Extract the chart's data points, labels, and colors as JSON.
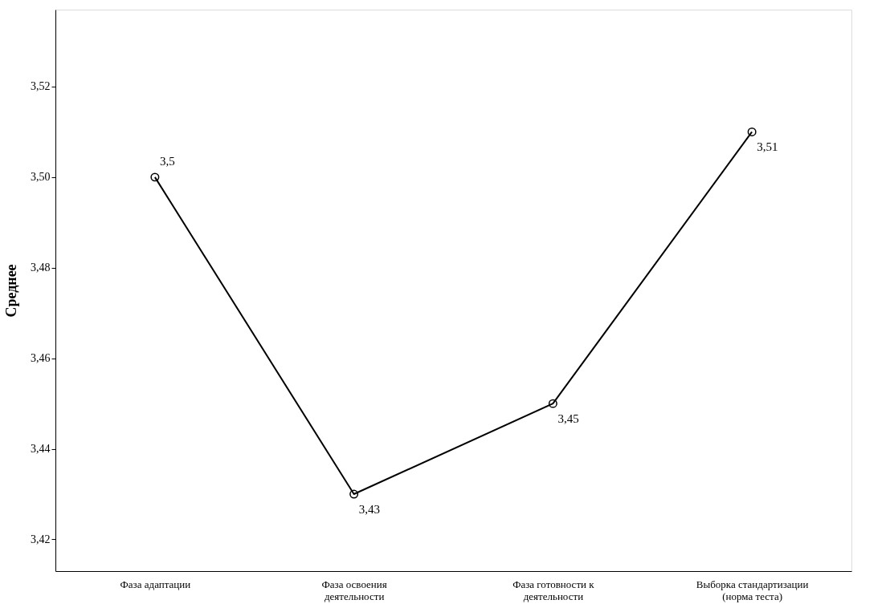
{
  "chart_data": {
    "type": "line",
    "ylabel": "Среднее",
    "categories": [
      "Фаза адаптации",
      "Фаза освоения деятельности",
      "Фаза готовности к деятельности",
      "Выборка стандартизации (норма теста)"
    ],
    "values": [
      3.5,
      3.43,
      3.45,
      3.51
    ],
    "value_labels": [
      "3,5",
      "3,43",
      "3,45",
      "3,51"
    ],
    "color": "#000000",
    "marker": "circle",
    "line_style": "solid",
    "ylim": [
      3.413,
      3.537
    ],
    "yticks": [
      {
        "value": 3.42,
        "label": "3,42"
      },
      {
        "value": 3.44,
        "label": "3,44"
      },
      {
        "value": 3.46,
        "label": "3,46"
      },
      {
        "value": 3.48,
        "label": "3,48"
      },
      {
        "value": 3.5,
        "label": "3,50"
      },
      {
        "value": 3.52,
        "label": "3,52"
      }
    ],
    "grid": false
  }
}
